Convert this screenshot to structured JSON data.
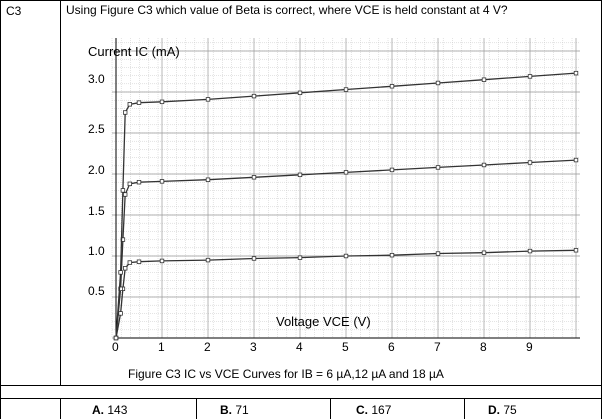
{
  "question": {
    "number": "C3",
    "text": "Using Figure C3 which value of Beta is correct, where VCE is held constant at 4 V?"
  },
  "chart_data": {
    "type": "line",
    "title": "",
    "ylabel": "Current IC (mA)",
    "xlabel": "Voltage VCE (V)",
    "xlim": [
      0,
      10
    ],
    "ylim": [
      0,
      3.4
    ],
    "x_ticks": [
      "0",
      "1",
      "2",
      "3",
      "4",
      "5",
      "6",
      "7",
      "8",
      "9"
    ],
    "y_ticks": [
      "0.5",
      "1.0",
      "1.5",
      "2.0",
      "2.5",
      "3.0"
    ],
    "series": [
      {
        "x": [
          0,
          0.1,
          0.15,
          0.2,
          0.3,
          0.5,
          1,
          2,
          3,
          4,
          5,
          6,
          7,
          8,
          9,
          10
        ],
        "y": [
          0,
          0.3,
          0.6,
          0.85,
          0.92,
          0.93,
          0.94,
          0.95,
          0.97,
          0.98,
          1.0,
          1.01,
          1.03,
          1.04,
          1.06,
          1.07
        ]
      },
      {
        "x": [
          0,
          0.1,
          0.15,
          0.2,
          0.3,
          0.5,
          1,
          2,
          3,
          4,
          5,
          6,
          7,
          8,
          9,
          10
        ],
        "y": [
          0,
          0.6,
          1.2,
          1.75,
          1.88,
          1.9,
          1.91,
          1.93,
          1.96,
          1.99,
          2.02,
          2.05,
          2.08,
          2.11,
          2.14,
          2.17
        ]
      },
      {
        "x": [
          0,
          0.1,
          0.15,
          0.2,
          0.3,
          0.5,
          1,
          2,
          3,
          4,
          5,
          6,
          7,
          8,
          9,
          10
        ],
        "y": [
          0,
          0.8,
          1.8,
          2.75,
          2.85,
          2.87,
          2.88,
          2.91,
          2.95,
          2.99,
          3.03,
          3.07,
          3.11,
          3.15,
          3.19,
          3.23
        ]
      }
    ],
    "grid": true,
    "caption": "Figure C3 IC vs VCE Curves for IB = 6 µA,12 µA and 18 µA"
  },
  "answers": [
    {
      "letter": "A.",
      "value": "143"
    },
    {
      "letter": "B.",
      "value": "71"
    },
    {
      "letter": "C.",
      "value": "167"
    },
    {
      "letter": "D.",
      "value": "75"
    }
  ]
}
